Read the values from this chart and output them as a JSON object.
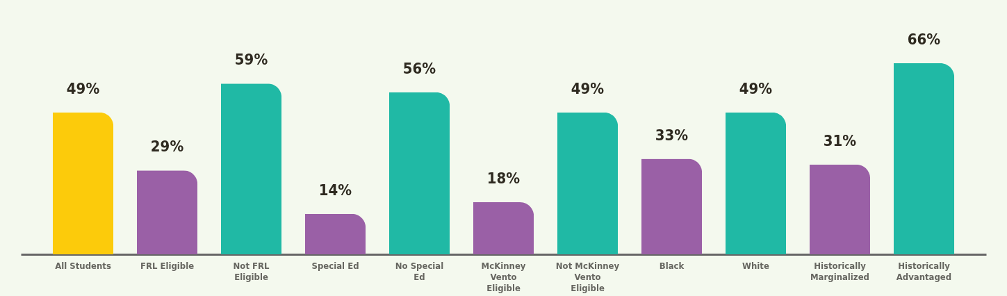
{
  "chart_data": {
    "type": "bar",
    "categories": [
      "All Students",
      "FRL Eligible",
      "Not FRL Eligible",
      "Special Ed",
      "No Special Ed",
      "McKinney Vento Eligible",
      "Not McKinney Vento Eligible",
      "Black",
      "White",
      "Historically Marginalized",
      "Historically Advantaged"
    ],
    "values": [
      49,
      29,
      59,
      14,
      56,
      18,
      49,
      33,
      49,
      31,
      66
    ],
    "value_labels": [
      "49%",
      "29%",
      "59%",
      "14%",
      "56%",
      "18%",
      "49%",
      "33%",
      "49%",
      "31%",
      "66%"
    ],
    "colors": [
      "#fccb0b",
      "#9a60a6",
      "#20b9a5",
      "#9a60a6",
      "#20b9a5",
      "#9a60a6",
      "#20b9a5",
      "#9a60a6",
      "#20b9a5",
      "#9a60a6",
      "#20b9a5"
    ],
    "grid": false
  }
}
